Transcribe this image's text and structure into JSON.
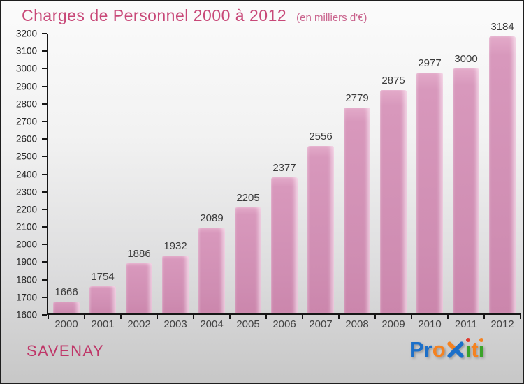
{
  "header": {
    "title": "Charges de Personnel 2000 à 2012",
    "subtitle": "(en milliers d'€)"
  },
  "chart_data": {
    "type": "bar",
    "title": "Charges de Personnel 2000 à 2012",
    "subtitle": "(en milliers d'€)",
    "categories": [
      "2000",
      "2001",
      "2002",
      "2003",
      "2004",
      "2005",
      "2006",
      "2007",
      "2008",
      "2009",
      "2010",
      "2011",
      "2012"
    ],
    "values": [
      1666,
      1754,
      1886,
      1932,
      2089,
      2205,
      2377,
      2556,
      2779,
      2875,
      2977,
      3000,
      3184
    ],
    "xlabel": "",
    "ylabel": "",
    "ylim": [
      1600,
      3200
    ],
    "ytick_step": 100,
    "grid": false,
    "legend": false,
    "bar_color": "#d193b7",
    "value_label_color": "#3a3a3a"
  },
  "footer": {
    "location": "SAVENAY",
    "logo": {
      "name": "Proxiti",
      "letters": [
        {
          "ch": "P",
          "color": "#1b6fc9",
          "type": "char"
        },
        {
          "ch": "r",
          "color": "#1b6fc9",
          "type": "char"
        },
        {
          "ch": "o",
          "color": "#f58220",
          "type": "char"
        },
        {
          "ch": "x",
          "color": "#1b6fc9",
          "accent": "#f58220",
          "type": "x"
        },
        {
          "ch": "i",
          "color": "#3ba32a",
          "dot": "#e03a2f",
          "type": "i"
        },
        {
          "ch": "t",
          "color": "#f58220",
          "type": "char"
        },
        {
          "ch": "i",
          "color": "#3ba32a",
          "dot": "#f58220",
          "type": "i"
        }
      ]
    }
  }
}
